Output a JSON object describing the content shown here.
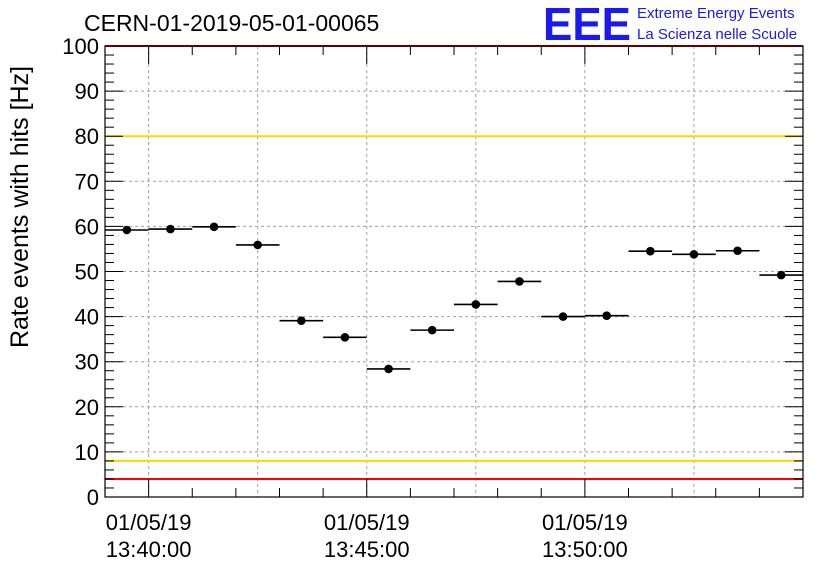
{
  "logo": {
    "mark": "EEE",
    "line1": "Extreme Energy Events",
    "line2": "La Scienza nelle Scuole"
  },
  "chart_data": {
    "type": "scatter",
    "title": "CERN-01-2019-05-01-00065",
    "ylabel": "Rate events with hits [Hz]",
    "xlabel": "",
    "ylim": [
      0,
      100
    ],
    "y_ticks": [
      0,
      10,
      20,
      30,
      40,
      50,
      60,
      70,
      80,
      90,
      100
    ],
    "x_ticks": [
      {
        "date": "01/05/19",
        "time": "13:40:00",
        "minutes": 0
      },
      {
        "date": "01/05/19",
        "time": "13:45:00",
        "minutes": 5
      },
      {
        "date": "01/05/19",
        "time": "13:50:00",
        "minutes": 10
      }
    ],
    "xlim_minutes": [
      -1,
      15
    ],
    "grid": true,
    "reference_lines": [
      {
        "value": 100,
        "color": "#ff0000"
      },
      {
        "value": 80,
        "color": "#ffd700"
      },
      {
        "value": 8,
        "color": "#ffd700"
      },
      {
        "value": 4,
        "color": "#ff0000"
      }
    ],
    "bin_width_minutes": 1,
    "series": [
      {
        "marker_color": "#000000",
        "x_minutes": [
          -0.5,
          0.5,
          1.5,
          2.5,
          3.5,
          4.5,
          5.5,
          6.5,
          7.5,
          8.5,
          9.5,
          10.5,
          11.5,
          12.5,
          13.5,
          14.5
        ],
        "values": [
          59.2,
          59.4,
          59.9,
          55.9,
          39.1,
          35.4,
          28.4,
          37.0,
          42.7,
          47.8,
          40.0,
          40.2,
          54.5,
          53.8,
          54.6,
          49.2
        ]
      }
    ]
  }
}
